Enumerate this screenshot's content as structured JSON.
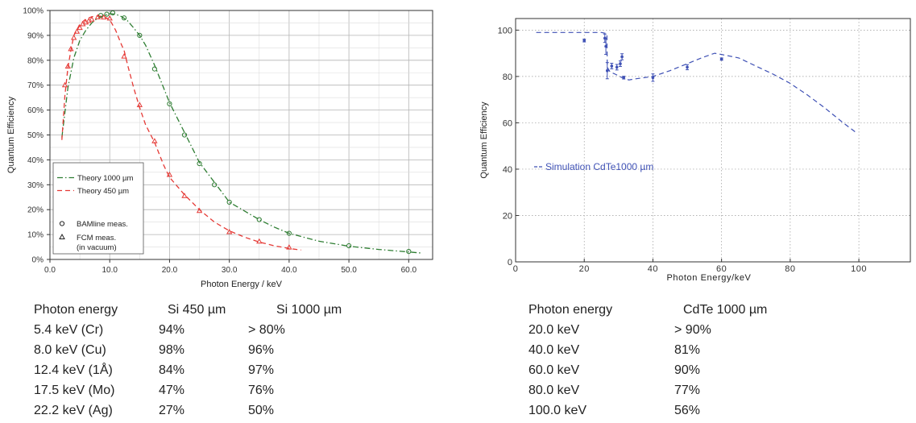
{
  "chart_data": [
    {
      "type": "line",
      "xlabel": "Photon Energy / keV",
      "ylabel": "Quantum Efficiency",
      "xlim": [
        0,
        64
      ],
      "ylim": [
        0,
        100
      ],
      "x_ticks": [
        "0.0",
        "10.0",
        "20.0",
        "30.0",
        "40.0",
        "50.0",
        "60.0"
      ],
      "x_tick_values": [
        0,
        10,
        20,
        30,
        40,
        50,
        60
      ],
      "y_ticks": [
        "0%",
        "10%",
        "20%",
        "30%",
        "40%",
        "50%",
        "60%",
        "70%",
        "80%",
        "90%",
        "100%"
      ],
      "y_tick_values": [
        0,
        10,
        20,
        30,
        40,
        50,
        60,
        70,
        80,
        90,
        100
      ],
      "grid": true,
      "legend_position": "bottom-left",
      "legend": [
        {
          "label": "Theory 1000 µm",
          "kind": "line",
          "style": "dashdot",
          "color": "#2e7d32"
        },
        {
          "label": "Theory 450 µm",
          "kind": "line",
          "style": "dashed",
          "color": "#e53935"
        },
        {
          "label": "BAMline meas.",
          "kind": "marker",
          "marker": "circle"
        },
        {
          "label": "FCM meas.",
          "kind": "marker",
          "marker": "triangle"
        },
        {
          "label": "(in vacuum)",
          "kind": "text"
        }
      ],
      "series": [
        {
          "name": "Theory 1000 µm",
          "style": "dashdot",
          "color": "#2e7d32",
          "x": [
            2,
            3,
            4,
            5,
            6,
            7,
            8,
            9,
            10,
            11,
            12,
            13,
            14,
            15,
            16,
            17.5,
            19,
            20,
            22.5,
            25,
            27.5,
            30,
            32.5,
            35,
            37.5,
            40,
            45,
            50,
            55,
            60,
            62
          ],
          "y": [
            49,
            69,
            81,
            88,
            92,
            95,
            97,
            98,
            98.7,
            98.5,
            97.5,
            95.8,
            93,
            90,
            86,
            78,
            69,
            63,
            51,
            39,
            31,
            23,
            19.5,
            16,
            13,
            10.5,
            7.3,
            5.3,
            4,
            3,
            2.6
          ]
        },
        {
          "name": "Theory 450 µm",
          "style": "dashed",
          "color": "#e53935",
          "x": [
            2,
            2.5,
            3,
            3.5,
            4,
            5,
            6,
            7,
            8,
            9,
            10,
            11,
            12,
            12.4,
            13,
            14,
            15,
            16,
            17.5,
            19,
            20,
            22.5,
            25,
            27.5,
            30,
            32.5,
            35,
            37.5,
            40,
            42
          ],
          "y": [
            48,
            66,
            77,
            84,
            90,
            94.5,
            96.5,
            97.5,
            97.8,
            97.6,
            96.3,
            92,
            86,
            84,
            78,
            69,
            61,
            54,
            47,
            38,
            33,
            26,
            20,
            15,
            11.5,
            9,
            7,
            5.5,
            4.4,
            3.8
          ]
        },
        {
          "name": "",
          "kind": "markers",
          "marker": "circle",
          "color": "#2e7d32",
          "x": [
            8.5,
            9.5,
            10.5,
            12.4,
            15,
            17.5,
            20,
            22.5,
            25,
            27.5,
            30,
            35,
            40,
            50,
            60
          ],
          "y": [
            98,
            98.5,
            99,
            97,
            90,
            76.5,
            62.5,
            50,
            38.5,
            30,
            23,
            16,
            10.5,
            5.5,
            3.2
          ]
        },
        {
          "name": "",
          "kind": "markers",
          "marker": "triangle",
          "color": "#e53935",
          "x": [
            2.5,
            3,
            3.5,
            4,
            4.5,
            5,
            5.5,
            6,
            6.5,
            7,
            8,
            9,
            10,
            12.4,
            15,
            17.5,
            20,
            22.5,
            25,
            30,
            35,
            40
          ],
          "y": [
            70,
            77.5,
            84.5,
            89,
            91.5,
            93,
            94.5,
            95.2,
            95.8,
            96.4,
            97.3,
            97.2,
            96.8,
            81.5,
            62,
            47.5,
            34,
            25.5,
            19.5,
            11,
            7.2,
            4.8
          ]
        }
      ]
    },
    {
      "type": "line",
      "xlabel": "Photon Energy/keV",
      "ylabel": "Quantum Efficiency",
      "xlim": [
        0,
        115
      ],
      "ylim": [
        0,
        105
      ],
      "x_ticks": [
        "0",
        "20",
        "40",
        "60",
        "80",
        "100"
      ],
      "x_tick_values": [
        0,
        20,
        40,
        60,
        80,
        100
      ],
      "y_ticks": [
        "0",
        "20",
        "40",
        "60",
        "80",
        "100"
      ],
      "y_tick_values": [
        0,
        20,
        40,
        60,
        80,
        100
      ],
      "grid": true,
      "legend_position": "center-left",
      "legend": [
        {
          "label": "Simulation CdTe1000 µm",
          "kind": "line",
          "style": "dashed",
          "color": "#3f51b5"
        }
      ],
      "series": [
        {
          "name": "Simulation CdTe1000 µm",
          "style": "dashed",
          "color": "#3f51b5",
          "x": [
            6,
            10,
            15,
            20,
            25,
            26.6,
            26.7,
            27.5,
            29,
            31,
            33,
            35,
            40,
            45,
            50,
            55,
            58,
            60,
            65,
            70,
            75,
            80,
            85,
            90,
            95,
            99
          ],
          "y": [
            99,
            99,
            99,
            99,
            99,
            98.5,
            84,
            82,
            81,
            79.5,
            78.5,
            79,
            80,
            82.5,
            85.5,
            88.5,
            90,
            89.5,
            88,
            84.5,
            81,
            77,
            72,
            66.5,
            60.5,
            56
          ]
        },
        {
          "name": "",
          "kind": "errorbars",
          "color": "#3f51b5",
          "points": [
            {
              "x": 20,
              "y": 95.5,
              "err": 0.6
            },
            {
              "x": 26,
              "y": 96.5,
              "err": 1.8
            },
            {
              "x": 26.3,
              "y": 93,
              "err": 3.5
            },
            {
              "x": 26.7,
              "y": 82.5,
              "err": 3.5
            },
            {
              "x": 28,
              "y": 84.5,
              "err": 1.2
            },
            {
              "x": 29.5,
              "y": 84,
              "err": 1.2
            },
            {
              "x": 30.5,
              "y": 85.5,
              "err": 1.2
            },
            {
              "x": 31,
              "y": 88.5,
              "err": 1.3
            },
            {
              "x": 31.5,
              "y": 79.5,
              "err": 0.6
            },
            {
              "x": 40,
              "y": 79.5,
              "err": 1.6
            },
            {
              "x": 50,
              "y": 84,
              "err": 1.1
            },
            {
              "x": 60,
              "y": 87.5,
              "err": 0.5
            }
          ]
        }
      ]
    }
  ],
  "table_si": {
    "headers": [
      "Photon energy",
      "Si 450 µm",
      "Si 1000 µm"
    ],
    "rows": [
      [
        "5.4 keV (Cr)",
        "94%",
        "> 80%"
      ],
      [
        "8.0 keV (Cu)",
        "98%",
        "96%"
      ],
      [
        "12.4 keV (1Å)",
        "84%",
        "97%"
      ],
      [
        "17.5 keV (Mo)",
        "47%",
        "76%"
      ],
      [
        "22.2 keV (Ag)",
        "27%",
        "50%"
      ]
    ]
  },
  "table_cdte": {
    "headers": [
      "Photon energy",
      "CdTe 1000 µm"
    ],
    "rows": [
      [
        "20.0 keV",
        "> 90%"
      ],
      [
        "40.0 keV",
        "81%"
      ],
      [
        "60.0 keV",
        "90%"
      ],
      [
        "80.0 keV",
        "77%"
      ],
      [
        "100.0 keV",
        "56%"
      ]
    ]
  }
}
